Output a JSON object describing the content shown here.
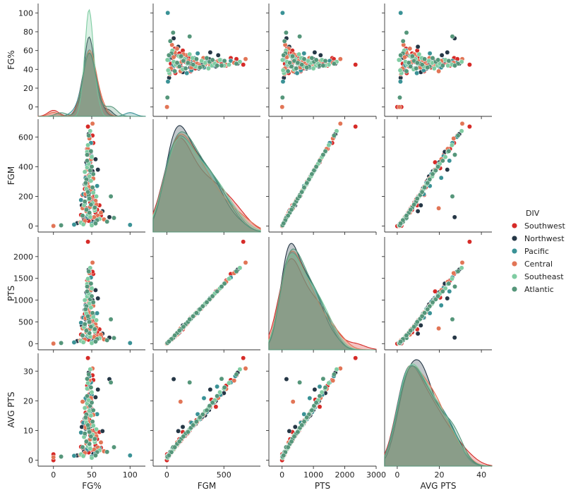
{
  "chart_data": {
    "type": "pairplot",
    "kind": "scatter",
    "diag_kind": "kde",
    "variables": [
      "FG%",
      "FGM",
      "PTS",
      "AVG PTS"
    ],
    "ranges": {
      "FG%": [
        -10,
        110
      ],
      "FGM": [
        -40,
        720
      ],
      "PTS": [
        -140,
        2450
      ],
      "AVG PTS": [
        -2,
        36
      ]
    },
    "col_ranges": {
      "FG%": [
        -20,
        120
      ],
      "FGM": [
        -120,
        820
      ],
      "PTS": [
        -420,
        3000
      ],
      "AVG PTS": [
        -6,
        45
      ]
    },
    "ticks": {
      "FG%": [
        0,
        20,
        40,
        60,
        80,
        100
      ],
      "FGM": [
        0,
        200,
        400,
        600
      ],
      "PTS": [
        0,
        500,
        1000,
        1500,
        2000
      ],
      "AVG PTS": [
        0,
        10,
        20,
        30
      ]
    },
    "col_ticks": {
      "FG%": [
        0,
        50,
        100
      ],
      "FGM": [
        0,
        500
      ],
      "PTS": [
        0,
        1000,
        2000,
        3000
      ],
      "AVG PTS": [
        0,
        20,
        40
      ]
    },
    "legend": {
      "title": "DIV",
      "placement": "right",
      "entries": [
        {
          "name": "Southwest",
          "color": "#d62b28"
        },
        {
          "name": "Northwest",
          "color": "#253746"
        },
        {
          "name": "Pacific",
          "color": "#3a9296"
        },
        {
          "name": "Central",
          "color": "#e27556"
        },
        {
          "name": "Southeast",
          "color": "#7fcca2"
        },
        {
          "name": "Atlantic",
          "color": "#55967a"
        }
      ]
    },
    "series": [
      {
        "name": "Southwest",
        "points": [
          [
            45,
            670,
            2340,
            34.4
          ],
          [
            52,
            560,
            1600,
            27.0
          ],
          [
            47,
            480,
            1300,
            22.2
          ],
          [
            44,
            420,
            1150,
            19.5
          ],
          [
            50,
            360,
            980,
            17.3
          ],
          [
            46,
            300,
            800,
            14.0
          ],
          [
            41,
            250,
            680,
            12.1
          ],
          [
            53,
            200,
            540,
            10.0
          ],
          [
            48,
            160,
            420,
            8.2
          ],
          [
            43,
            120,
            320,
            6.4
          ],
          [
            55,
            90,
            230,
            5.0
          ],
          [
            39,
            60,
            160,
            3.8
          ],
          [
            46,
            35,
            90,
            2.6
          ],
          [
            0,
            0,
            0,
            0.0
          ],
          [
            0,
            2,
            6,
            2.0
          ],
          [
            60,
            140,
            330,
            9.5
          ],
          [
            38,
            210,
            600,
            12.8
          ],
          [
            49,
            390,
            1060,
            20.4
          ],
          [
            44,
            520,
            1450,
            25.1
          ],
          [
            51,
            610,
            1650,
            28.6
          ],
          [
            42,
            330,
            900,
            16.0
          ],
          [
            57,
            110,
            260,
            7.1
          ],
          [
            36,
            75,
            210,
            4.5
          ],
          [
            47,
            260,
            720,
            13.5
          ],
          [
            50,
            180,
            470,
            9.0
          ],
          [
            45,
            95,
            250,
            5.6
          ],
          [
            52,
            45,
            115,
            3.2
          ],
          [
            40,
            20,
            55,
            1.9
          ],
          [
            48,
            430,
            1200,
            18.0
          ],
          [
            62,
            70,
            160,
            4.2
          ]
        ]
      },
      {
        "name": "Northwest",
        "points": [
          [
            46,
            620,
            1700,
            29.5
          ],
          [
            49,
            500,
            1380,
            22.6
          ],
          [
            43,
            430,
            1180,
            20.0
          ],
          [
            51,
            370,
            1000,
            16.9
          ],
          [
            45,
            310,
            840,
            14.6
          ],
          [
            48,
            255,
            690,
            12.3
          ],
          [
            42,
            205,
            560,
            10.6
          ],
          [
            53,
            165,
            430,
            8.6
          ],
          [
            47,
            125,
            330,
            6.8
          ],
          [
            44,
            95,
            250,
            5.4
          ],
          [
            56,
            65,
            170,
            4.0
          ],
          [
            40,
            40,
            105,
            2.9
          ],
          [
            73,
            60,
            140,
            27.3
          ],
          [
            58,
            380,
            1040,
            23.8
          ],
          [
            37,
            140,
            420,
            11.2
          ],
          [
            50,
            230,
            620,
            11.5
          ],
          [
            45,
            335,
            900,
            15.1
          ],
          [
            47,
            80,
            210,
            4.8
          ],
          [
            52,
            28,
            70,
            2.1
          ],
          [
            64,
            100,
            230,
            9.8
          ],
          [
            41,
            280,
            780,
            14.0
          ],
          [
            55,
            450,
            1230,
            21.2
          ],
          [
            44,
            55,
            150,
            3.5
          ],
          [
            48,
            190,
            510,
            9.6
          ],
          [
            31,
            20,
            60,
            1.6
          ]
        ]
      },
      {
        "name": "Pacific",
        "points": [
          [
            47,
            600,
            1650,
            28.3
          ],
          [
            50,
            470,
            1280,
            22.0
          ],
          [
            44,
            410,
            1120,
            19.3
          ],
          [
            48,
            350,
            960,
            16.2
          ],
          [
            43,
            290,
            790,
            13.8
          ],
          [
            52,
            240,
            650,
            11.8
          ],
          [
            46,
            195,
            530,
            10.2
          ],
          [
            41,
            150,
            410,
            8.4
          ],
          [
            54,
            115,
            300,
            6.6
          ],
          [
            45,
            85,
            225,
            5.1
          ],
          [
            100,
            8,
            16,
            1.6
          ],
          [
            27,
            10,
            30,
            1.5
          ],
          [
            60,
            50,
            130,
            4.1
          ],
          [
            42,
            325,
            880,
            20.9
          ],
          [
            49,
            560,
            1520,
            26.2
          ],
          [
            46,
            380,
            1050,
            17.8
          ],
          [
            39,
            215,
            600,
            12.6
          ],
          [
            51,
            135,
            350,
            7.4
          ],
          [
            44,
            65,
            175,
            3.9
          ],
          [
            55,
            30,
            75,
            2.4
          ],
          [
            48,
            440,
            1200,
            24.8
          ],
          [
            36,
            175,
            480,
            9.3
          ],
          [
            57,
            270,
            700,
            15.5
          ],
          [
            45,
            100,
            270,
            5.8
          ],
          [
            50,
            15,
            40,
            1.2
          ]
        ]
      },
      {
        "name": "Central",
        "points": [
          [
            51,
            690,
            1860,
            30.9
          ],
          [
            47,
            590,
            1620,
            26.8
          ],
          [
            45,
            520,
            1420,
            24.0
          ],
          [
            49,
            450,
            1230,
            21.0
          ],
          [
            44,
            380,
            1030,
            18.1
          ],
          [
            52,
            320,
            870,
            15.3
          ],
          [
            46,
            265,
            720,
            12.9
          ],
          [
            42,
            215,
            585,
            11.0
          ],
          [
            55,
            170,
            445,
            8.9
          ],
          [
            48,
            130,
            345,
            7.0
          ],
          [
            43,
            100,
            265,
            5.6
          ],
          [
            58,
            70,
            180,
            4.3
          ],
          [
            0,
            1,
            3,
            1.0
          ],
          [
            62,
            90,
            210,
            6.0
          ],
          [
            38,
            120,
            350,
            19.7
          ],
          [
            50,
            240,
            650,
            12.0
          ],
          [
            46,
            340,
            930,
            16.5
          ],
          [
            53,
            60,
            155,
            3.6
          ],
          [
            41,
            35,
            95,
            2.5
          ],
          [
            47,
            410,
            1120,
            19.8
          ],
          [
            56,
            145,
            370,
            8.1
          ],
          [
            44,
            285,
            780,
            14.1
          ],
          [
            49,
            190,
            510,
            9.9
          ],
          [
            66,
            45,
            100,
            3.0
          ],
          [
            35,
            25,
            75,
            1.8
          ]
        ]
      },
      {
        "name": "Southeast",
        "points": [
          [
            48,
            640,
            1740,
            30.6
          ],
          [
            45,
            545,
            1490,
            26.0
          ],
          [
            50,
            465,
            1270,
            22.9
          ],
          [
            44,
            395,
            1080,
            19.1
          ],
          [
            47,
            335,
            920,
            16.6
          ],
          [
            42,
            280,
            760,
            13.9
          ],
          [
            52,
            225,
            610,
            11.6
          ],
          [
            46,
            180,
            490,
            9.6
          ],
          [
            40,
            140,
            380,
            7.8
          ],
          [
            54,
            105,
            280,
            6.1
          ],
          [
            45,
            75,
            200,
            4.7
          ],
          [
            60,
            48,
            125,
            3.3
          ],
          [
            36,
            22,
            62,
            2.0
          ],
          [
            49,
            305,
            830,
            15.0
          ],
          [
            43,
            250,
            690,
            12.6
          ],
          [
            51,
            155,
            410,
            8.6
          ],
          [
            47,
            90,
            240,
            5.3
          ],
          [
            56,
            200,
            540,
            10.4
          ],
          [
            41,
            365,
            1000,
            17.6
          ],
          [
            46,
            420,
            1150,
            20.2
          ],
          [
            39,
            12,
            34,
            1.4
          ],
          [
            53,
            120,
            320,
            6.9
          ],
          [
            44,
            500,
            1370,
            24.1
          ],
          [
            48,
            60,
            160,
            3.9
          ],
          [
            50,
            5,
            14,
            0.8
          ]
        ]
      },
      {
        "name": "Atlantic",
        "points": [
          [
            46,
            610,
            1660,
            28.9
          ],
          [
            49,
            505,
            1380,
            24.5
          ],
          [
            44,
            440,
            1200,
            21.6
          ],
          [
            48,
            375,
            1020,
            18.3
          ],
          [
            43,
            315,
            860,
            15.4
          ],
          [
            51,
            260,
            705,
            13.0
          ],
          [
            46,
            210,
            570,
            10.9
          ],
          [
            41,
            165,
            450,
            9.0
          ],
          [
            54,
            125,
            335,
            7.2
          ],
          [
            47,
            90,
            245,
            5.5
          ],
          [
            79,
            55,
            130,
            4.4
          ],
          [
            70,
            30,
            80,
            2.8
          ],
          [
            10,
            5,
            15,
            1.2
          ],
          [
            44,
            480,
            1310,
            27.4
          ],
          [
            52,
            350,
            950,
            16.8
          ],
          [
            45,
            230,
            630,
            11.8
          ],
          [
            49,
            145,
            390,
            8.0
          ],
          [
            38,
            70,
            190,
            4.4
          ],
          [
            57,
            40,
            105,
            2.7
          ],
          [
            42,
            290,
            790,
            14.4
          ],
          [
            50,
            400,
            1090,
            19.4
          ],
          [
            47,
            185,
            500,
            9.5
          ],
          [
            55,
            18,
            48,
            1.6
          ],
          [
            43,
            110,
            300,
            6.3
          ],
          [
            75,
            200,
            560,
            26.2
          ]
        ]
      }
    ]
  }
}
